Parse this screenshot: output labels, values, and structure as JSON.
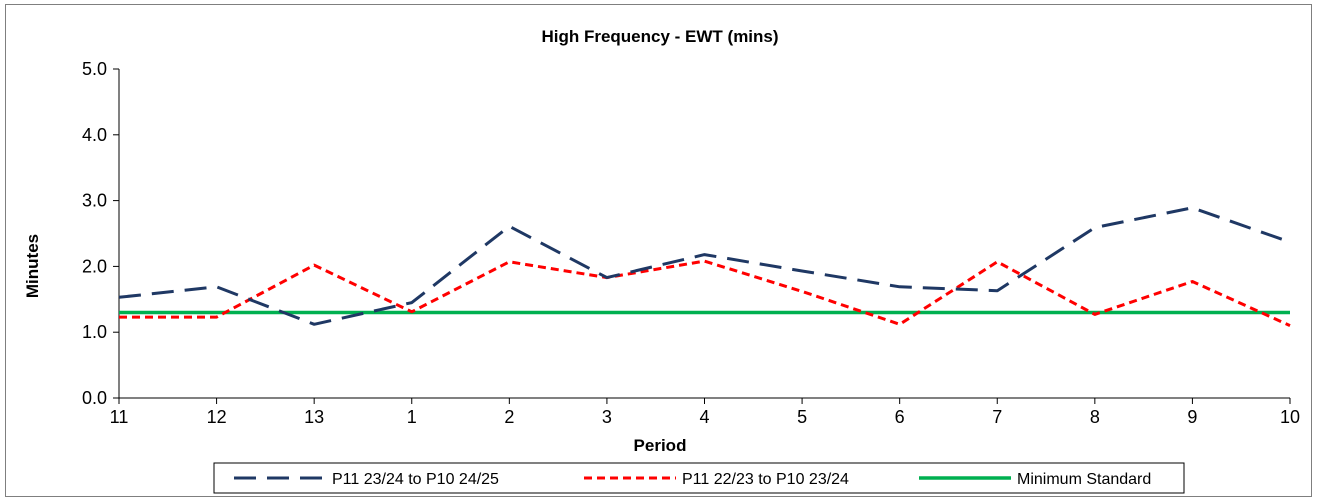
{
  "chart_data": {
    "type": "line",
    "title": "High Frequency - EWT (mins)",
    "xlabel": "Period",
    "ylabel": "Minutes",
    "categories": [
      "11",
      "12",
      "13",
      "1",
      "2",
      "3",
      "4",
      "5",
      "6",
      "7",
      "8",
      "9",
      "10"
    ],
    "y_ticks": [
      "0.0",
      "1.0",
      "2.0",
      "3.0",
      "4.0",
      "5.0"
    ],
    "ylim": [
      0,
      5
    ],
    "grid": false,
    "legend_position": "bottom",
    "series": [
      {
        "name": "P11 23/24 to P10 24/25",
        "color": "#1f3864",
        "style": "long-dash",
        "values": [
          1.53,
          1.69,
          1.12,
          1.45,
          2.61,
          1.83,
          2.18,
          1.93,
          1.69,
          1.63,
          2.59,
          2.89,
          2.37
        ]
      },
      {
        "name": "P11 22/23 to P10 23/24",
        "color": "#ff0000",
        "style": "short-dash",
        "values": [
          1.23,
          1.23,
          2.02,
          1.31,
          2.07,
          1.83,
          2.08,
          1.62,
          1.12,
          2.07,
          1.27,
          1.77,
          1.1
        ]
      },
      {
        "name": "Minimum Standard",
        "color": "#00b050",
        "style": "solid",
        "values": [
          1.3,
          1.3,
          1.3,
          1.3,
          1.3,
          1.3,
          1.3,
          1.3,
          1.3,
          1.3,
          1.3,
          1.3,
          1.3
        ]
      }
    ]
  }
}
